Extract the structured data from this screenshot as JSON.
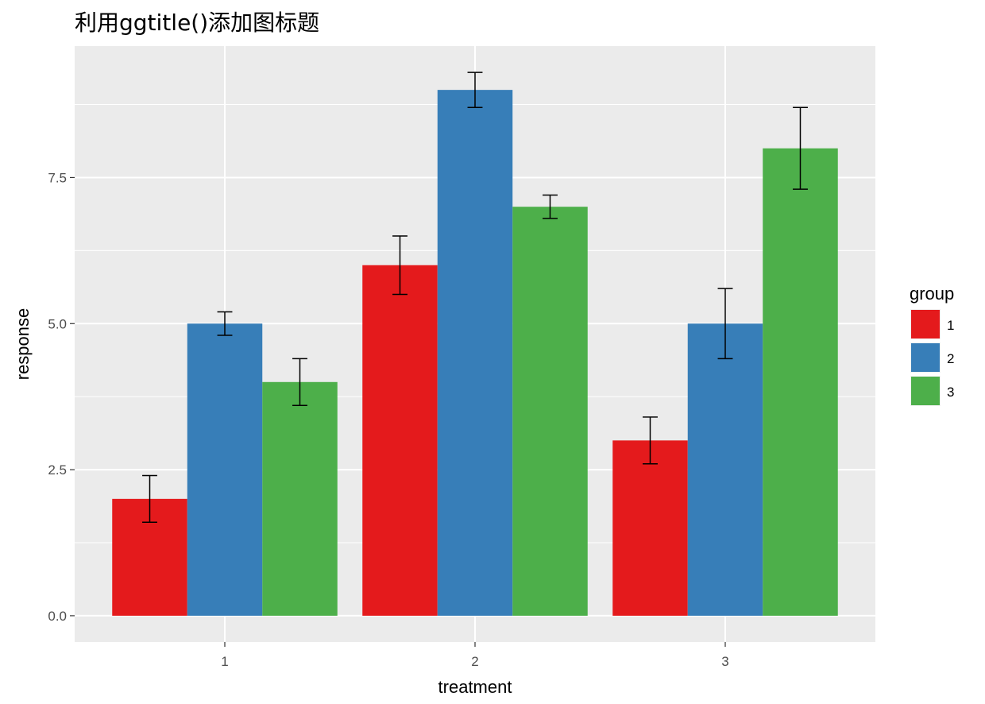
{
  "chart_data": {
    "type": "bar",
    "title": "利用ggtitle()添加图标题",
    "xlabel": "treatment",
    "ylabel": "response",
    "categories": [
      "1",
      "2",
      "3"
    ],
    "ylim": [
      -0.45,
      9.75
    ],
    "yticks": [
      0.0,
      2.5,
      5.0,
      7.5
    ],
    "ytick_labels": [
      "0.0",
      "2.5",
      "5.0",
      "7.5"
    ],
    "grid": true,
    "background": "#ebebeb",
    "legend": {
      "title": "group",
      "placement": "right",
      "entries": [
        "1",
        "2",
        "3"
      ]
    },
    "series": [
      {
        "name": "1",
        "color": "#e41a1c",
        "values": [
          2,
          6,
          3
        ],
        "error_low": [
          1.6,
          5.5,
          2.6
        ],
        "error_high": [
          2.4,
          6.5,
          3.4
        ]
      },
      {
        "name": "2",
        "color": "#377eb8",
        "values": [
          5,
          9,
          5
        ],
        "error_low": [
          4.8,
          8.7,
          4.4
        ],
        "error_high": [
          5.2,
          9.3,
          5.6
        ]
      },
      {
        "name": "3",
        "color": "#4daf4a",
        "values": [
          4,
          7,
          8
        ],
        "error_low": [
          3.6,
          6.8,
          7.3
        ],
        "error_high": [
          4.4,
          7.2,
          8.7
        ]
      }
    ]
  }
}
